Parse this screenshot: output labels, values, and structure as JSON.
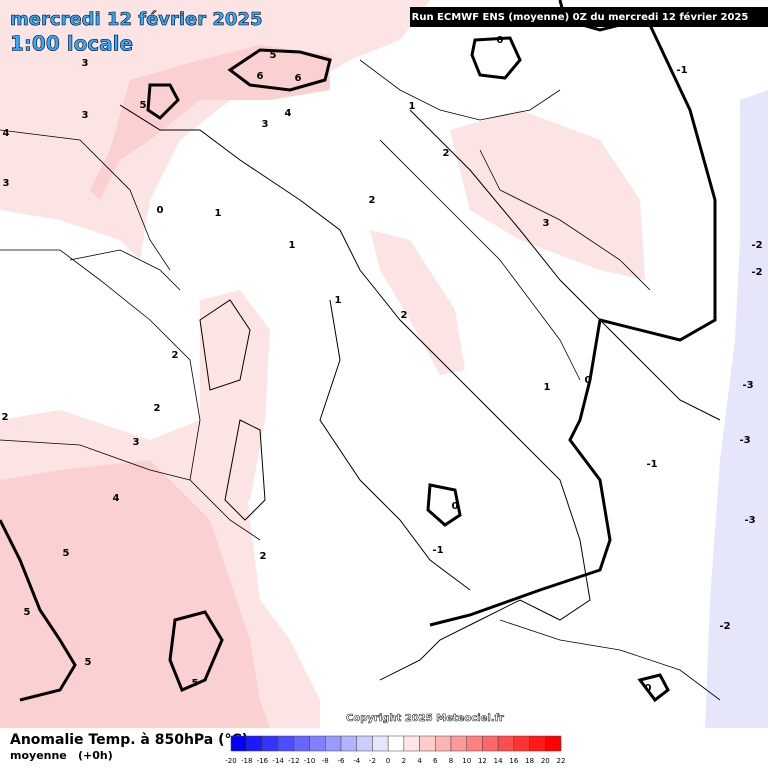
{
  "header": {
    "date": "mercredi 12 février 2025",
    "time": "1:00 locale",
    "run": "Run ECMWF ENS (moyenne) 0Z du mercredi 12 février 2025"
  },
  "copyright": "Copyright 2025 Meteociel.fr",
  "legend": {
    "title": "Anomalie Temp. à 850hPa (°C)",
    "subtitle": "moyenne",
    "step": "(+0h)",
    "ticks": [
      -20,
      -18,
      -16,
      -14,
      -12,
      -10,
      -8,
      -6,
      -4,
      -2,
      0,
      2,
      4,
      6,
      8,
      10,
      12,
      14,
      16,
      18,
      20,
      22
    ],
    "colors": [
      "#0000ff",
      "#1a1aff",
      "#3333ff",
      "#4d4dff",
      "#6666ff",
      "#8080ff",
      "#9999ff",
      "#b3b3ff",
      "#ccccff",
      "#e6e6ff",
      "#ffffff",
      "#ffe6e6",
      "#ffcccc",
      "#ffb3b3",
      "#ff9999",
      "#ff8080",
      "#ff6666",
      "#ff4d4d",
      "#ff3333",
      "#ff1a1a",
      "#ff0000"
    ]
  },
  "contour_labels": [
    3,
    5,
    5,
    6,
    6,
    3,
    4,
    3,
    3,
    4,
    0,
    1,
    1,
    1,
    2,
    1,
    2,
    3,
    0,
    -1,
    -2,
    -2,
    2,
    2,
    2,
    2,
    3,
    4,
    5,
    5,
    5,
    5,
    2,
    0,
    -1,
    1,
    0,
    -1,
    -3,
    -3,
    -3,
    -2,
    0
  ]
}
